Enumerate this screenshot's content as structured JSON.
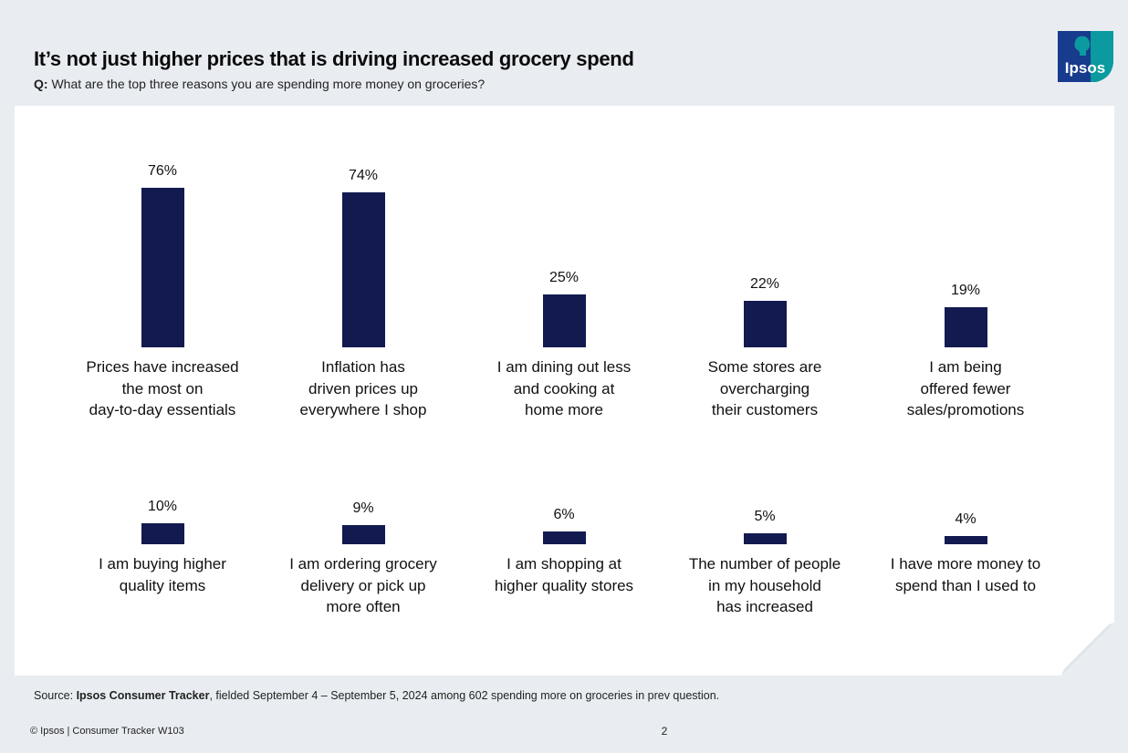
{
  "header": {
    "title": "It’s not just higher prices that is driving increased grocery spend",
    "question_prefix": "Q:",
    "question": "What are the top three reasons you are spending more money on groceries?"
  },
  "logo": {
    "text": "Ipsos",
    "color": "#0a9aa0",
    "accent": "#1a2a8a"
  },
  "colors": {
    "bar": "#121a4f",
    "background": "#e9edf1",
    "card": "#ffffff"
  },
  "chart_data": {
    "type": "bar",
    "title": "It’s not just higher prices that is driving increased grocery spend",
    "unit": "%",
    "ylim": [
      0,
      100
    ],
    "rows": [
      {
        "categories": [
          "Prices have increased\nthe most on\nday-to-day essentials",
          "Inflation has\ndriven prices up\neverywhere I shop",
          "I am dining out less\nand cooking at\nhome more",
          "Some stores are\novercharging\ntheir customers",
          "I am being\noffered fewer\nsales/promotions"
        ],
        "values": [
          76,
          74,
          25,
          22,
          19
        ],
        "labels": [
          "76%",
          "74%",
          "25%",
          "22%",
          "19%"
        ]
      },
      {
        "categories": [
          "I am buying higher\nquality items",
          "I am ordering grocery\ndelivery or pick up\nmore often",
          "I am shopping at\nhigher quality stores",
          "The number of people\nin my household\nhas increased",
          "I have more money to\nspend than I used to"
        ],
        "values": [
          10,
          9,
          6,
          5,
          4
        ],
        "labels": [
          "10%",
          "9%",
          "6%",
          "5%",
          "4%"
        ]
      }
    ]
  },
  "source": {
    "prefix": "Source: ",
    "name": "Ipsos Consumer Tracker",
    "rest": ", fielded September 4 – September 5, 2024 among 602 spending more on groceries in prev question."
  },
  "footer": {
    "left": "© Ipsos | Consumer Tracker W103",
    "page": "2"
  }
}
